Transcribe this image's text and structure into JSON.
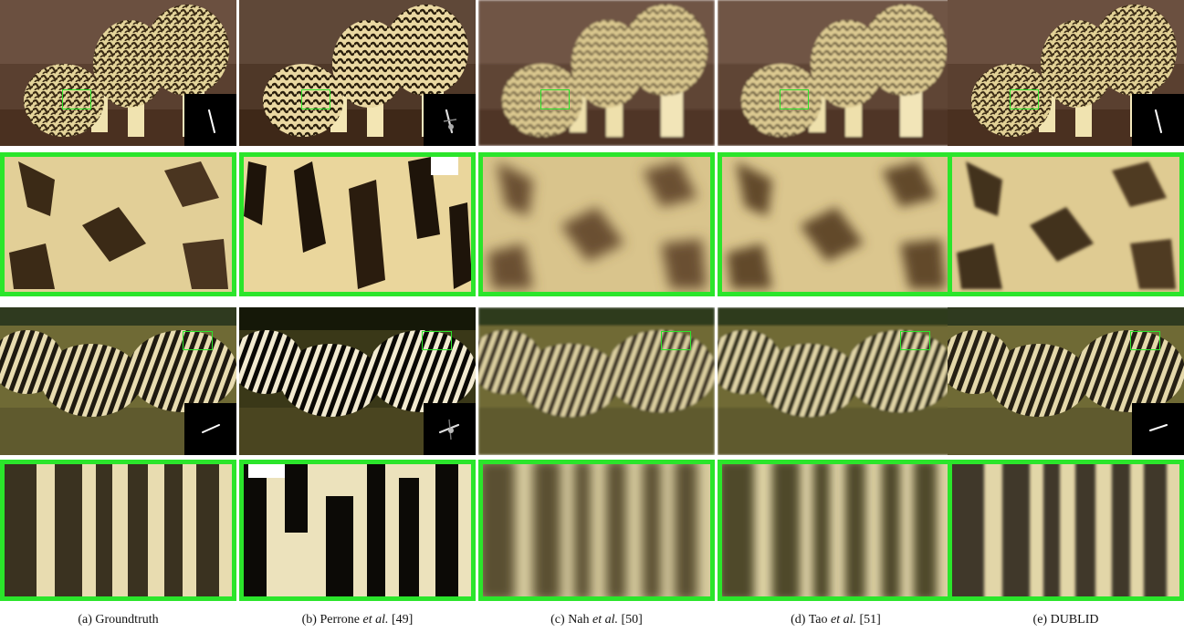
{
  "figure": {
    "columns": [
      {
        "key": "a",
        "caption_prefix": "(a) ",
        "caption_name": "Groundtruth",
        "caption_etal": "",
        "caption_ref": "",
        "has_kernel": true,
        "kernel_style": "clean",
        "style": "sharp"
      },
      {
        "key": "b",
        "caption_prefix": "(b) ",
        "caption_name": "Perrone ",
        "caption_etal": "et al.",
        "caption_ref": " [49]",
        "has_kernel": true,
        "kernel_style": "noisy",
        "style": "ringing"
      },
      {
        "key": "c",
        "caption_prefix": "(c) ",
        "caption_name": "Nah ",
        "caption_etal": "et al.",
        "caption_ref": " [50]",
        "has_kernel": false,
        "kernel_style": "",
        "style": "blurred"
      },
      {
        "key": "d",
        "caption_prefix": "(d) ",
        "caption_name": "Tao ",
        "caption_etal": "et al.",
        "caption_ref": " [51]",
        "has_kernel": false,
        "kernel_style": "",
        "style": "blurred"
      },
      {
        "key": "e",
        "caption_prefix": "(e) ",
        "caption_name": "DUBLID",
        "caption_etal": "",
        "caption_ref": "",
        "has_kernel": true,
        "kernel_style": "clean",
        "style": "sharp"
      }
    ],
    "colors": {
      "roi_box": "#2be52b",
      "background": "#ffffff",
      "kernel_bg": "#000000"
    },
    "icons": {
      "kernel": "blur-kernel-icon"
    }
  }
}
